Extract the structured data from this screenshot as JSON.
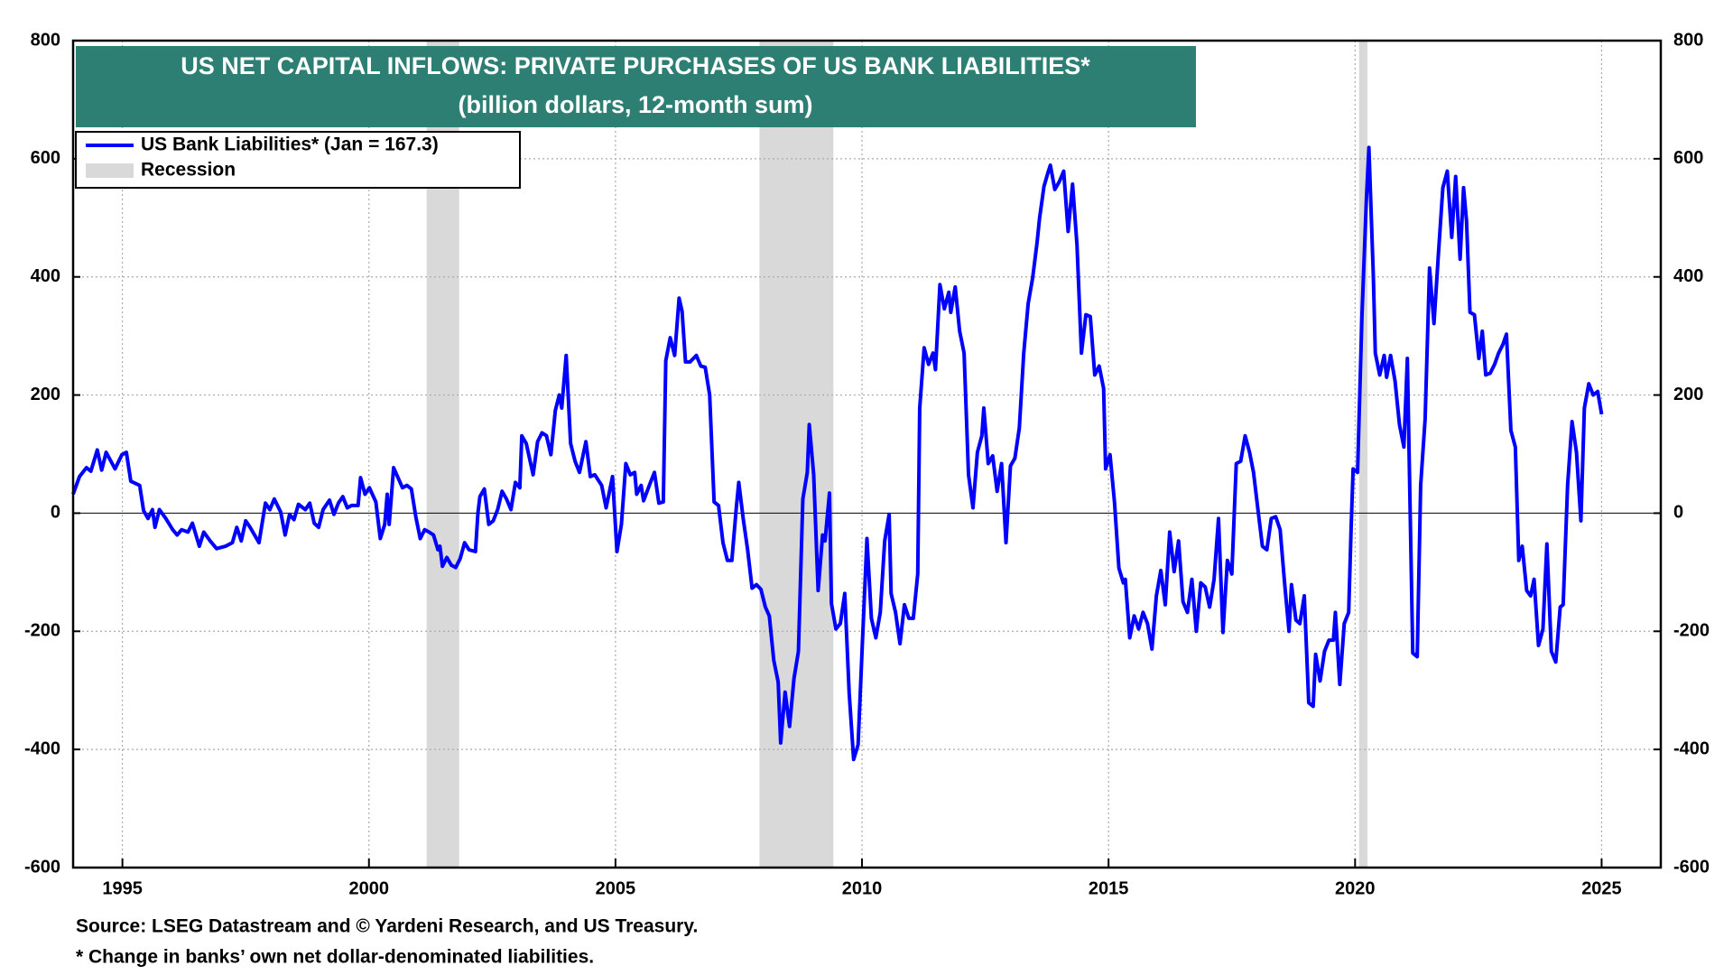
{
  "chart_data": {
    "type": "line",
    "title": "US NET CAPITAL INFLOWS: PRIVATE PURCHASES OF US BANK LIABILITIES*",
    "subtitle": "(billion dollars, 12-month sum)",
    "source": "Source: LSEG Datastream and © Yardeni Research, and US Treasury.",
    "note": "* Change in banks’ own net dollar-denominated liabilities.",
    "recession_label": "Recession",
    "recession_color": "#d9d9d9",
    "recessions": [
      [
        2001.17,
        2001.83
      ],
      [
        2007.92,
        2009.42
      ],
      [
        2020.08,
        2020.25
      ]
    ],
    "xlim": [
      1994,
      2026.2
    ],
    "xticks": [
      1995,
      2000,
      2005,
      2010,
      2015,
      2020,
      2025
    ],
    "ylim": [
      -600,
      800
    ],
    "yticks": [
      -600,
      -400,
      -200,
      0,
      200,
      400,
      600,
      800
    ],
    "grid": true,
    "x": [
      1994.0,
      1994.13,
      1994.27,
      1994.36,
      1994.49,
      1994.58,
      1994.67,
      1994.85,
      1994.99,
      1995.08,
      1995.17,
      1995.35,
      1995.43,
      1995.52,
      1995.61,
      1995.66,
      1995.75,
      1995.88,
      1996.02,
      1996.11,
      1996.2,
      1996.33,
      1996.42,
      1996.56,
      1996.65,
      1996.78,
      1996.91,
      1997.09,
      1997.23,
      1997.32,
      1997.41,
      1997.5,
      1997.59,
      1997.77,
      1997.9,
      1997.99,
      1998.08,
      1998.21,
      1998.3,
      1998.39,
      1998.48,
      1998.57,
      1998.71,
      1998.8,
      1998.89,
      1998.98,
      1999.07,
      1999.2,
      1999.29,
      1999.38,
      1999.47,
      1999.56,
      1999.65,
      1999.78,
      1999.83,
      1999.92,
      2000.01,
      2000.14,
      2000.23,
      2000.32,
      2000.37,
      2000.41,
      2000.5,
      2000.59,
      2000.68,
      2000.77,
      2000.86,
      2000.95,
      2001.04,
      2001.13,
      2001.22,
      2001.31,
      2001.4,
      2001.44,
      2001.49,
      2001.58,
      2001.67,
      2001.76,
      2001.85,
      2001.94,
      2002.03,
      2002.16,
      2002.21,
      2002.25,
      2002.34,
      2002.43,
      2002.52,
      2002.61,
      2002.7,
      2002.79,
      2002.88,
      2002.97,
      2003.06,
      2003.1,
      2003.19,
      2003.33,
      2003.42,
      2003.51,
      2003.6,
      2003.69,
      2003.78,
      2003.86,
      2003.91,
      2004.0,
      2004.09,
      2004.18,
      2004.27,
      2004.4,
      2004.49,
      2004.58,
      2004.72,
      2004.81,
      2004.94,
      2005.03,
      2005.12,
      2005.21,
      2005.3,
      2005.39,
      2005.43,
      2005.52,
      2005.57,
      2005.7,
      2005.79,
      2005.88,
      2005.97,
      2006.02,
      2006.11,
      2006.2,
      2006.29,
      2006.35,
      2006.42,
      2006.51,
      2006.64,
      2006.73,
      2006.82,
      2006.91,
      2007.0,
      2007.09,
      2007.18,
      2007.27,
      2007.36,
      2007.45,
      2007.5,
      2007.59,
      2007.68,
      2007.77,
      2007.86,
      2007.95,
      2008.04,
      2008.12,
      2008.21,
      2008.3,
      2008.35,
      2008.44,
      2008.53,
      2008.62,
      2008.71,
      2008.8,
      2008.89,
      2008.93,
      2009.02,
      2009.11,
      2009.2,
      2009.25,
      2009.34,
      2009.38,
      2009.47,
      2009.56,
      2009.65,
      2009.74,
      2009.83,
      2009.92,
      2010.01,
      2010.1,
      2010.19,
      2010.28,
      2010.37,
      2010.46,
      2010.55,
      2010.59,
      2010.68,
      2010.77,
      2010.86,
      2010.95,
      2011.04,
      2011.13,
      2011.17,
      2011.26,
      2011.35,
      2011.44,
      2011.49,
      2011.58,
      2011.67,
      2011.76,
      2011.8,
      2011.89,
      2011.98,
      2012.07,
      2012.16,
      2012.25,
      2012.34,
      2012.43,
      2012.47,
      2012.56,
      2012.65,
      2012.74,
      2012.83,
      2012.92,
      2013.01,
      2013.1,
      2013.19,
      2013.28,
      2013.37,
      2013.46,
      2013.55,
      2013.6,
      2013.69,
      2013.78,
      2013.82,
      2013.91,
      2014.0,
      2014.09,
      2014.18,
      2014.27,
      2014.36,
      2014.45,
      2014.54,
      2014.63,
      2014.72,
      2014.81,
      2014.9,
      2014.94,
      2015.03,
      2015.12,
      2015.21,
      2015.3,
      2015.34,
      2015.43,
      2015.52,
      2015.61,
      2015.7,
      2015.79,
      2015.88,
      2015.97,
      2016.06,
      2016.15,
      2016.24,
      2016.33,
      2016.42,
      2016.51,
      2016.6,
      2016.69,
      2016.78,
      2016.87,
      2016.96,
      2017.05,
      2017.14,
      2017.23,
      2017.32,
      2017.41,
      2017.5,
      2017.59,
      2017.68,
      2017.77,
      2017.86,
      2017.94,
      2018.03,
      2018.12,
      2018.21,
      2018.3,
      2018.39,
      2018.48,
      2018.57,
      2018.66,
      2018.71,
      2018.8,
      2018.88,
      2018.97,
      2019.06,
      2019.15,
      2019.2,
      2019.29,
      2019.38,
      2019.47,
      2019.56,
      2019.6,
      2019.69,
      2019.78,
      2019.87,
      2019.92,
      2019.96,
      2020.05,
      2020.14,
      2020.23,
      2020.28,
      2020.37,
      2020.41,
      2020.5,
      2020.59,
      2020.64,
      2020.72,
      2020.81,
      2020.9,
      2020.99,
      2021.06,
      2021.17,
      2021.26,
      2021.33,
      2021.42,
      2021.51,
      2021.6,
      2021.69,
      2021.78,
      2021.87,
      2021.96,
      2022.04,
      2022.13,
      2022.2,
      2022.26,
      2022.33,
      2022.42,
      2022.51,
      2022.58,
      2022.65,
      2022.74,
      2022.83,
      2022.91,
      2023.0,
      2023.07,
      2023.16,
      2023.25,
      2023.32,
      2023.39,
      2023.48,
      2023.56,
      2023.63,
      2023.72,
      2023.81,
      2023.89,
      2023.98,
      2024.07,
      2024.16,
      2024.22,
      2024.31,
      2024.4,
      2024.49,
      2024.58,
      2024.65,
      2024.74,
      2024.83,
      2024.92,
      2025.0
    ],
    "series": [
      {
        "name": "US Bank Liabilities* (Jan = 167.3)",
        "color": "#0000ff",
        "values": [
          32,
          62,
          77,
          71,
          107,
          73,
          103,
          75,
          99,
          103,
          54,
          47,
          4,
          -9,
          6,
          -24,
          6,
          -9,
          -28,
          -37,
          -28,
          -32,
          -17,
          -56,
          -32,
          -47,
          -60,
          -56,
          -50,
          -24,
          -47,
          -13,
          -24,
          -50,
          17,
          6,
          24,
          2,
          -37,
          -2,
          -11,
          15,
          6,
          17,
          -17,
          -24,
          6,
          22,
          -2,
          17,
          28,
          9,
          13,
          13,
          60,
          32,
          43,
          19,
          -43,
          -19,
          32,
          -19,
          77,
          60,
          43,
          47,
          41,
          -6,
          -43,
          -28,
          -32,
          -37,
          -62,
          -56,
          -90,
          -75,
          -88,
          -92,
          -77,
          -50,
          -62,
          -65,
          0,
          28,
          41,
          -19,
          -13,
          6,
          37,
          24,
          6,
          52,
          43,
          131,
          118,
          65,
          121,
          136,
          131,
          99,
          174,
          200,
          178,
          267,
          118,
          88,
          69,
          121,
          62,
          65,
          47,
          9,
          62,
          -65,
          -19,
          84,
          65,
          69,
          32,
          47,
          21,
          50,
          69,
          17,
          19,
          258,
          297,
          267,
          364,
          342,
          256,
          256,
          267,
          249,
          247,
          200,
          19,
          13,
          -50,
          -80,
          -80,
          9,
          52,
          -9,
          -62,
          -127,
          -121,
          -129,
          -159,
          -174,
          -249,
          -286,
          -389,
          -303,
          -361,
          -280,
          -234,
          24,
          69,
          150,
          65,
          -131,
          -37,
          -47,
          34,
          -153,
          -196,
          -187,
          -136,
          -305,
          -417,
          -392,
          -215,
          -43,
          -178,
          -211,
          -168,
          -47,
          -2,
          -136,
          -168,
          -221,
          -155,
          -178,
          -178,
          -103,
          178,
          280,
          252,
          271,
          243,
          387,
          346,
          374,
          340,
          383,
          308,
          271,
          65,
          9,
          103,
          131,
          178,
          84,
          97,
          37,
          84,
          -50,
          80,
          93,
          144,
          271,
          355,
          398,
          458,
          499,
          553,
          579,
          589,
          548,
          561,
          579,
          477,
          557,
          454,
          271,
          336,
          333,
          234,
          249,
          211,
          75,
          99,
          19,
          -93,
          -118,
          -112,
          -211,
          -174,
          -196,
          -168,
          -187,
          -230,
          -140,
          -97,
          -155,
          -32,
          -99,
          -47,
          -150,
          -168,
          -112,
          -200,
          -118,
          -125,
          -159,
          -112,
          -9,
          -202,
          -80,
          -103,
          84,
          88,
          131,
          103,
          69,
          6,
          -56,
          -62,
          -9,
          -6,
          -28,
          -118,
          -200,
          -121,
          -181,
          -187,
          -140,
          -321,
          -327,
          -239,
          -284,
          -234,
          -215,
          -215,
          -168,
          -290,
          -187,
          -168,
          -24,
          75,
          69,
          336,
          533,
          619,
          402,
          271,
          234,
          267,
          230,
          267,
          224,
          150,
          112,
          262,
          -237,
          -243,
          47,
          159,
          415,
          321,
          439,
          551,
          579,
          467,
          570,
          430,
          551,
          495,
          340,
          336,
          262,
          308,
          234,
          237,
          252,
          271,
          286,
          303,
          140,
          112,
          -80,
          -56,
          -131,
          -140,
          -112,
          -224,
          -196,
          -52,
          -234,
          -252,
          -159,
          -155,
          47,
          155,
          103,
          -13,
          178,
          219,
          200,
          206,
          167.3
        ]
      }
    ]
  }
}
